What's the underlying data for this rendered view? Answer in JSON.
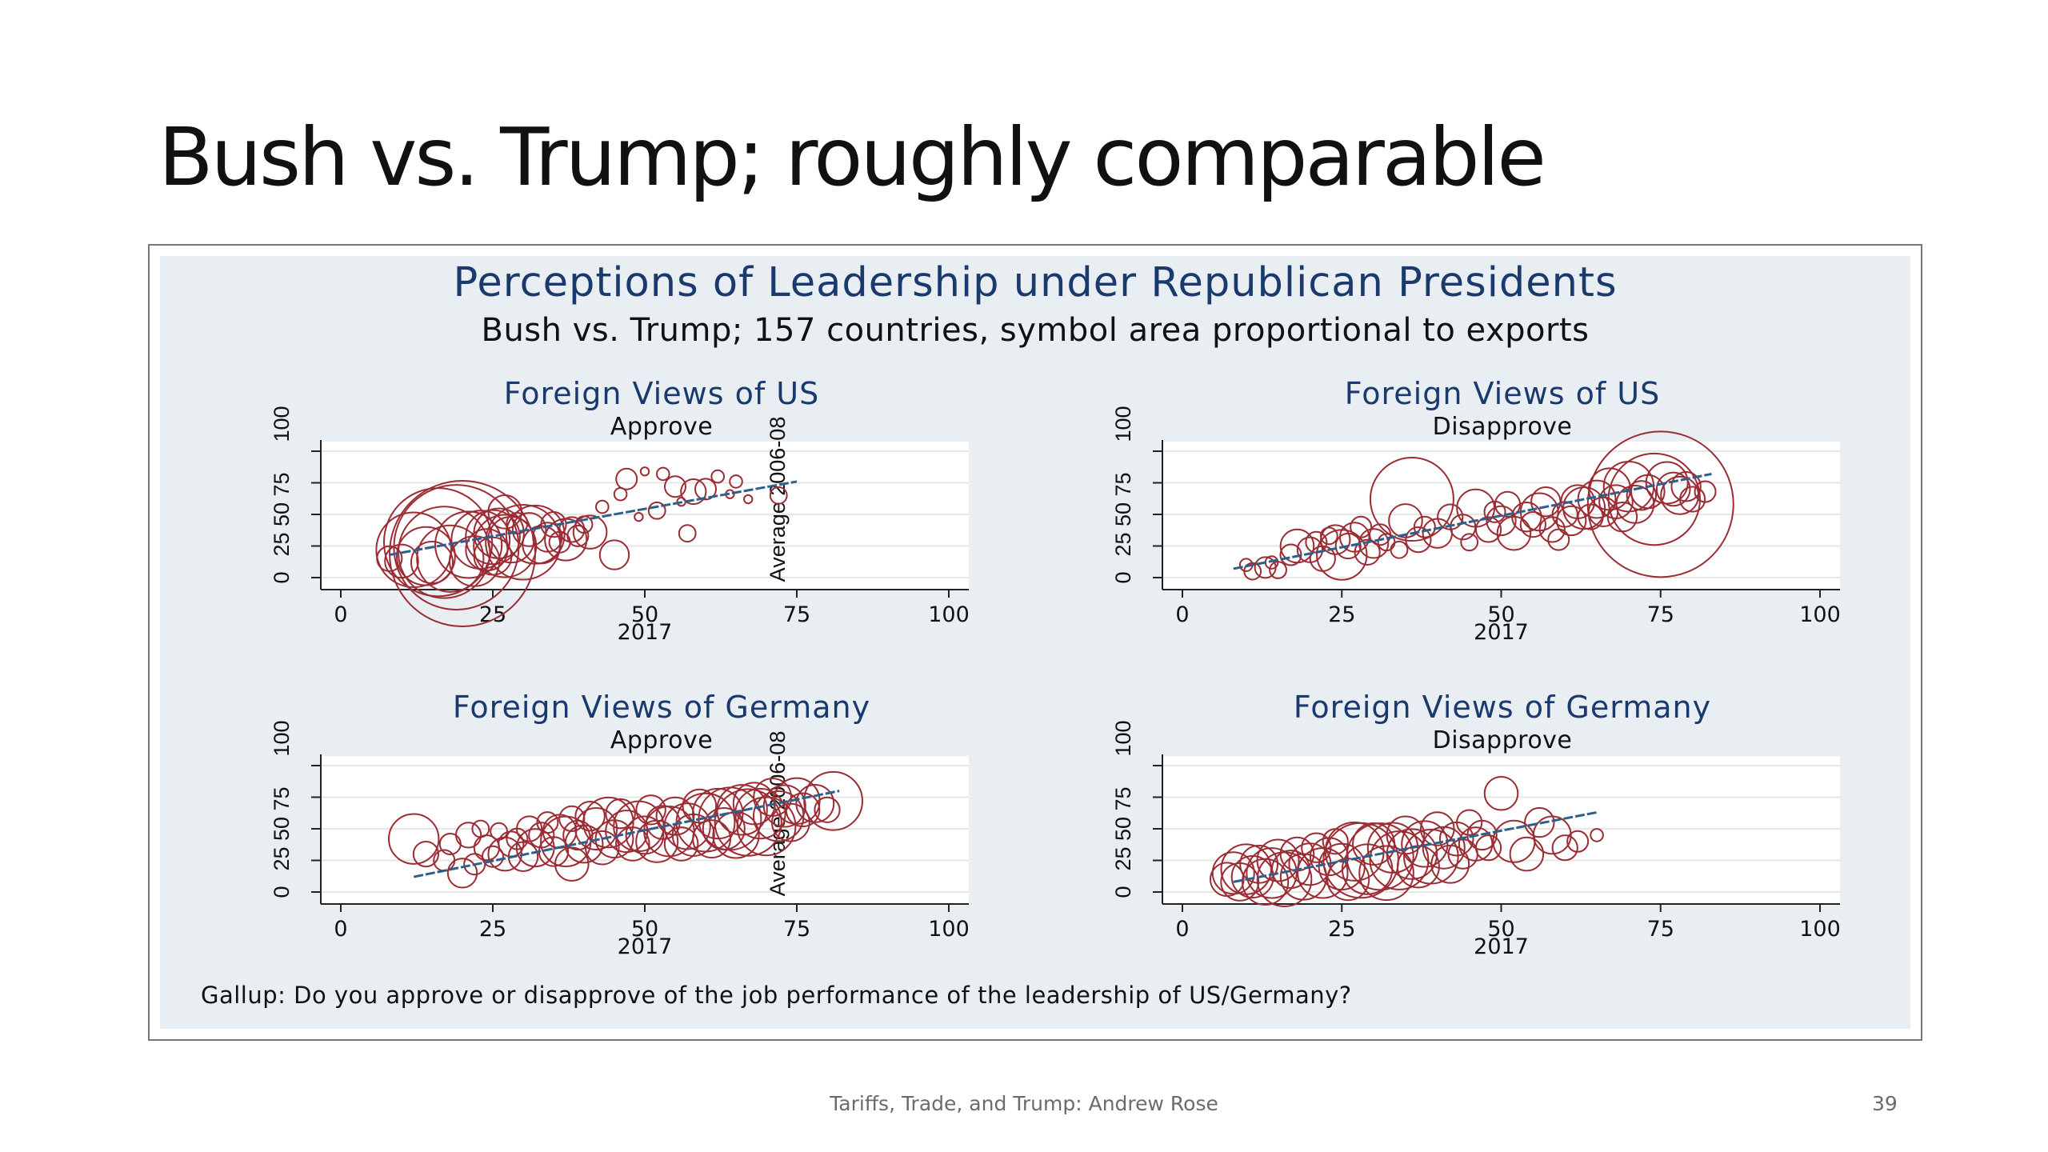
{
  "slide": {
    "title": "Bush vs. Trump; roughly comparable",
    "footer": "Tariffs, Trade, and Trump: Andrew Rose",
    "page_number": "39"
  },
  "figure": {
    "title": "Perceptions of Leadership under Republican Presidents",
    "subtitle": "Bush vs. Trump; 157 countries, symbol area proportional to exports",
    "note": "Gallup: Do you approve or disapprove of the job performance of the leadership of US/Germany?",
    "colors": {
      "marker": "#9b2c34",
      "fit_line": "#2e5f8a",
      "title": "#1a3a6e",
      "panel_bg": "#e9eef3"
    }
  },
  "chart_data": [
    {
      "type": "scatter",
      "title": "Foreign Views of US",
      "subtitle": "Approve",
      "xlabel": "2017",
      "ylabel": "Average 2006-08",
      "xlim": [
        0,
        100
      ],
      "ylim": [
        0,
        100
      ],
      "xticks": [
        "0",
        "25",
        "50",
        "75",
        "100"
      ],
      "yticks": [
        "0",
        "25",
        "50",
        "75",
        "100"
      ],
      "fit_line": {
        "x": [
          8,
          75
        ],
        "y": [
          18,
          76
        ]
      },
      "points": [
        [
          8,
          15,
          6
        ],
        [
          10,
          13,
          8
        ],
        [
          12,
          22,
          18
        ],
        [
          14,
          17,
          14
        ],
        [
          15,
          12,
          10
        ],
        [
          16,
          28,
          26
        ],
        [
          17,
          20,
          22
        ],
        [
          18,
          15,
          16
        ],
        [
          19,
          24,
          30
        ],
        [
          20,
          19,
          35
        ],
        [
          21,
          26,
          16
        ],
        [
          22,
          13,
          12
        ],
        [
          23,
          30,
          14
        ],
        [
          24,
          22,
          10
        ],
        [
          25,
          17,
          9
        ],
        [
          25,
          32,
          13
        ],
        [
          26,
          35,
          12
        ],
        [
          27,
          25,
          15
        ],
        [
          27,
          52,
          8
        ],
        [
          28,
          30,
          11
        ],
        [
          29,
          43,
          5
        ],
        [
          30,
          28,
          18
        ],
        [
          31,
          38,
          8
        ],
        [
          32,
          34,
          14
        ],
        [
          33,
          26,
          9
        ],
        [
          34,
          32,
          7
        ],
        [
          35,
          42,
          6
        ],
        [
          36,
          28,
          5
        ],
        [
          37,
          30,
          10
        ],
        [
          38,
          38,
          6
        ],
        [
          39,
          33,
          5
        ],
        [
          40,
          42,
          4
        ],
        [
          41,
          36,
          8
        ],
        [
          43,
          56,
          3
        ],
        [
          45,
          18,
          7
        ],
        [
          46,
          66,
          3
        ],
        [
          47,
          78,
          5
        ],
        [
          49,
          48,
          2
        ],
        [
          50,
          84,
          2
        ],
        [
          52,
          53,
          4
        ],
        [
          53,
          82,
          3
        ],
        [
          55,
          72,
          5
        ],
        [
          56,
          60,
          2
        ],
        [
          57,
          35,
          4
        ],
        [
          58,
          68,
          6
        ],
        [
          60,
          70,
          5
        ],
        [
          62,
          80,
          3
        ],
        [
          64,
          66,
          2
        ],
        [
          65,
          76,
          3
        ],
        [
          67,
          62,
          2
        ],
        [
          72,
          65,
          4
        ]
      ]
    },
    {
      "type": "scatter",
      "title": "Foreign Views of US",
      "subtitle": "Disapprove",
      "xlabel": "2017",
      "ylabel": "",
      "xlim": [
        0,
        100
      ],
      "ylim": [
        0,
        100
      ],
      "xticks": [
        "0",
        "25",
        "50",
        "75",
        "100"
      ],
      "yticks": [
        "0",
        "25",
        "50",
        "75",
        "100"
      ],
      "fit_line": {
        "x": [
          8,
          83
        ],
        "y": [
          7,
          82
        ]
      },
      "points": [
        [
          10,
          10,
          3
        ],
        [
          11,
          5,
          4
        ],
        [
          13,
          8,
          5
        ],
        [
          14,
          12,
          3
        ],
        [
          15,
          6,
          4
        ],
        [
          17,
          18,
          5
        ],
        [
          18,
          25,
          8
        ],
        [
          20,
          22,
          6
        ],
        [
          21,
          28,
          5
        ],
        [
          22,
          15,
          6
        ],
        [
          23,
          33,
          4
        ],
        [
          24,
          30,
          7
        ],
        [
          25,
          18,
          12
        ],
        [
          26,
          25,
          6
        ],
        [
          27,
          32,
          7
        ],
        [
          28,
          40,
          5
        ],
        [
          29,
          20,
          6
        ],
        [
          30,
          27,
          7
        ],
        [
          31,
          34,
          5
        ],
        [
          32,
          28,
          4
        ],
        [
          34,
          22,
          4
        ],
        [
          35,
          45,
          8
        ],
        [
          36,
          62,
          20
        ],
        [
          37,
          30,
          6
        ],
        [
          38,
          40,
          5
        ],
        [
          40,
          35,
          7
        ],
        [
          42,
          48,
          6
        ],
        [
          44,
          40,
          6
        ],
        [
          45,
          28,
          4
        ],
        [
          46,
          55,
          9
        ],
        [
          48,
          38,
          6
        ],
        [
          49,
          52,
          5
        ],
        [
          50,
          45,
          7
        ],
        [
          51,
          58,
          6
        ],
        [
          52,
          35,
          8
        ],
        [
          54,
          48,
          7
        ],
        [
          55,
          42,
          6
        ],
        [
          56,
          52,
          9
        ],
        [
          57,
          60,
          7
        ],
        [
          58,
          38,
          6
        ],
        [
          59,
          30,
          5
        ],
        [
          60,
          50,
          6
        ],
        [
          61,
          45,
          7
        ],
        [
          62,
          60,
          8
        ],
        [
          63,
          55,
          10
        ],
        [
          64,
          48,
          6
        ],
        [
          65,
          62,
          9
        ],
        [
          66,
          52,
          7
        ],
        [
          67,
          70,
          10
        ],
        [
          68,
          60,
          8
        ],
        [
          69,
          48,
          7
        ],
        [
          70,
          72,
          12
        ],
        [
          71,
          58,
          9
        ],
        [
          72,
          65,
          7
        ],
        [
          73,
          68,
          8
        ],
        [
          74,
          62,
          22
        ],
        [
          75,
          58,
          35
        ],
        [
          76,
          75,
          10
        ],
        [
          77,
          70,
          8
        ],
        [
          78,
          65,
          9
        ],
        [
          79,
          72,
          7
        ],
        [
          80,
          62,
          6
        ],
        [
          82,
          68,
          5
        ]
      ]
    },
    {
      "type": "scatter",
      "title": "Foreign Views of Germany",
      "subtitle": "Approve",
      "xlabel": "2017",
      "ylabel": "Average 2006-08",
      "xlim": [
        0,
        100
      ],
      "ylim": [
        0,
        100
      ],
      "xticks": [
        "0",
        "25",
        "50",
        "75",
        "100"
      ],
      "yticks": [
        "0",
        "25",
        "50",
        "75",
        "100"
      ],
      "fit_line": {
        "x": [
          12,
          82
        ],
        "y": [
          12,
          80
        ]
      },
      "points": [
        [
          12,
          42,
          12
        ],
        [
          14,
          30,
          6
        ],
        [
          17,
          25,
          5
        ],
        [
          18,
          38,
          5
        ],
        [
          20,
          15,
          7
        ],
        [
          21,
          45,
          6
        ],
        [
          22,
          22,
          5
        ],
        [
          23,
          50,
          4
        ],
        [
          24,
          35,
          6
        ],
        [
          25,
          28,
          5
        ],
        [
          26,
          48,
          4
        ],
        [
          27,
          30,
          8
        ],
        [
          28,
          38,
          6
        ],
        [
          29,
          42,
          5
        ],
        [
          30,
          28,
          7
        ],
        [
          31,
          50,
          6
        ],
        [
          32,
          35,
          9
        ],
        [
          33,
          45,
          6
        ],
        [
          34,
          55,
          5
        ],
        [
          35,
          32,
          7
        ],
        [
          36,
          48,
          8
        ],
        [
          37,
          40,
          12
        ],
        [
          38,
          58,
          6
        ],
        [
          38,
          22,
          8
        ],
        [
          39,
          45,
          7
        ],
        [
          40,
          38,
          9
        ],
        [
          41,
          60,
          7
        ],
        [
          42,
          50,
          10
        ],
        [
          43,
          35,
          8
        ],
        [
          44,
          55,
          12
        ],
        [
          45,
          42,
          9
        ],
        [
          46,
          62,
          7
        ],
        [
          47,
          48,
          10
        ],
        [
          48,
          38,
          8
        ],
        [
          49,
          52,
          12
        ],
        [
          50,
          45,
          9
        ],
        [
          51,
          65,
          7
        ],
        [
          52,
          40,
          10
        ],
        [
          53,
          55,
          8
        ],
        [
          54,
          48,
          12
        ],
        [
          55,
          60,
          9
        ],
        [
          56,
          38,
          8
        ],
        [
          57,
          52,
          11
        ],
        [
          58,
          45,
          10
        ],
        [
          59,
          68,
          8
        ],
        [
          60,
          55,
          14
        ],
        [
          61,
          42,
          9
        ],
        [
          62,
          62,
          12
        ],
        [
          63,
          50,
          10
        ],
        [
          64,
          58,
          15
        ],
        [
          65,
          45,
          11
        ],
        [
          66,
          65,
          12
        ],
        [
          67,
          55,
          16
        ],
        [
          68,
          70,
          10
        ],
        [
          69,
          62,
          12
        ],
        [
          70,
          52,
          14
        ],
        [
          71,
          75,
          9
        ],
        [
          72,
          60,
          12
        ],
        [
          73,
          68,
          10
        ],
        [
          74,
          55,
          9
        ],
        [
          75,
          72,
          11
        ],
        [
          76,
          65,
          8
        ],
        [
          78,
          70,
          9
        ],
        [
          80,
          65,
          6
        ],
        [
          81,
          72,
          14
        ]
      ]
    },
    {
      "type": "scatter",
      "title": "Foreign Views of Germany",
      "subtitle": "Disapprove",
      "xlabel": "2017",
      "ylabel": "",
      "xlim": [
        0,
        100
      ],
      "ylim": [
        0,
        100
      ],
      "xticks": [
        "0",
        "25",
        "50",
        "75",
        "100"
      ],
      "yticks": [
        "0",
        "25",
        "50",
        "75",
        "100"
      ],
      "fit_line": {
        "x": [
          8,
          65
        ],
        "y": [
          8,
          63
        ]
      },
      "points": [
        [
          7,
          10,
          8
        ],
        [
          8,
          15,
          10
        ],
        [
          9,
          8,
          9
        ],
        [
          10,
          18,
          12
        ],
        [
          11,
          12,
          10
        ],
        [
          12,
          22,
          9
        ],
        [
          13,
          8,
          11
        ],
        [
          14,
          15,
          12
        ],
        [
          15,
          25,
          10
        ],
        [
          16,
          10,
          13
        ],
        [
          17,
          18,
          9
        ],
        [
          18,
          30,
          8
        ],
        [
          19,
          12,
          11
        ],
        [
          20,
          22,
          10
        ],
        [
          21,
          35,
          7
        ],
        [
          22,
          15,
          12
        ],
        [
          23,
          28,
          9
        ],
        [
          24,
          40,
          6
        ],
        [
          25,
          20,
          11
        ],
        [
          26,
          10,
          10
        ],
        [
          27,
          32,
          14
        ],
        [
          28,
          25,
          18
        ],
        [
          29,
          18,
          12
        ],
        [
          30,
          38,
          10
        ],
        [
          31,
          28,
          16
        ],
        [
          32,
          15,
          13
        ],
        [
          33,
          35,
          12
        ],
        [
          34,
          25,
          14
        ],
        [
          35,
          45,
          9
        ],
        [
          36,
          30,
          12
        ],
        [
          37,
          20,
          10
        ],
        [
          38,
          38,
          11
        ],
        [
          39,
          28,
          13
        ],
        [
          40,
          50,
          8
        ],
        [
          41,
          35,
          10
        ],
        [
          42,
          22,
          9
        ],
        [
          43,
          42,
          8
        ],
        [
          44,
          30,
          7
        ],
        [
          45,
          55,
          6
        ],
        [
          46,
          38,
          8
        ],
        [
          47,
          45,
          7
        ],
        [
          48,
          35,
          6
        ],
        [
          50,
          78,
          8
        ],
        [
          52,
          40,
          10
        ],
        [
          54,
          30,
          8
        ],
        [
          56,
          55,
          7
        ],
        [
          58,
          45,
          9
        ],
        [
          60,
          35,
          6
        ],
        [
          62,
          40,
          5
        ],
        [
          65,
          45,
          3
        ]
      ]
    }
  ]
}
